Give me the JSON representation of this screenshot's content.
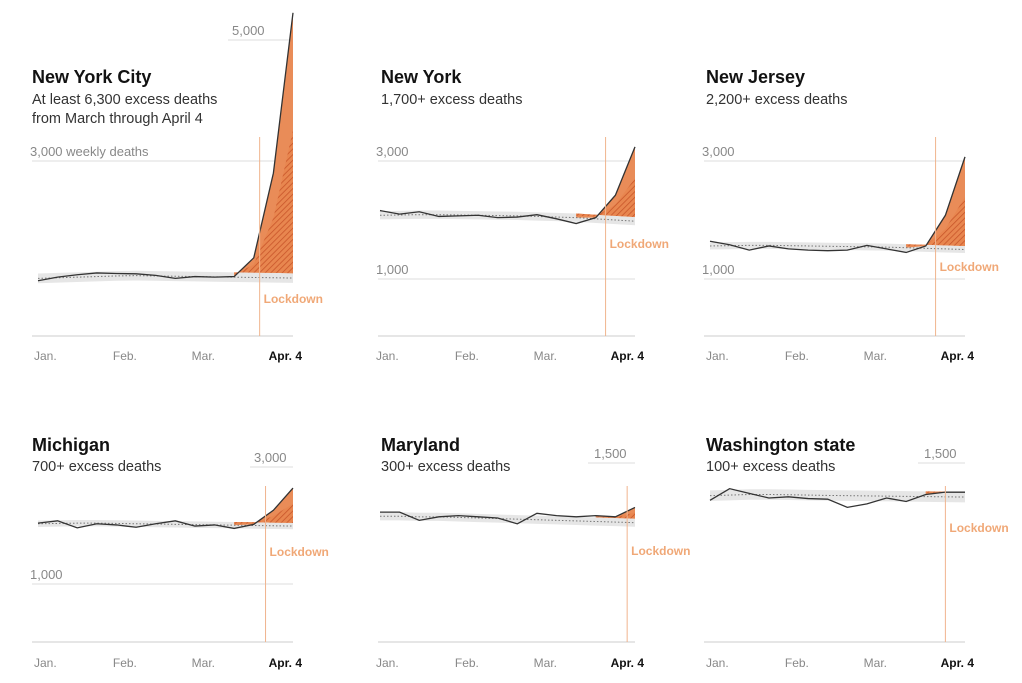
{
  "colors": {
    "excess": "#e8864f",
    "excess_hatch": "#c8552a",
    "band": "#e6e6e6",
    "line": "#333333",
    "grid": "#dddddd",
    "lockdown": "#f0b48e"
  },
  "labels": {
    "lockdown": "Lockdown",
    "months": [
      "Jan.",
      "Feb.",
      "Mar."
    ],
    "end": "Apr. 4"
  },
  "chart_data": [
    {
      "type": "line",
      "title": "New York City",
      "subtitle": "At least 6,300 excess deaths\nfrom March through April 4",
      "y_gridlines": [
        {
          "value": 3000,
          "label": "3,000 weekly deaths"
        },
        {
          "value": 5000,
          "label": "5,000"
        }
      ],
      "ylim": [
        0,
        5400
      ],
      "lockdown_week": 11.3,
      "weeks": 14,
      "observed": [
        1020,
        1080,
        1120,
        1150,
        1140,
        1135,
        1110,
        1060,
        1090,
        1080,
        1090,
        1400,
        2800,
        5450
      ],
      "expected": [
        1060,
        1070,
        1080,
        1090,
        1100,
        1105,
        1100,
        1095,
        1090,
        1085,
        1080,
        1075,
        1070,
        1065
      ],
      "band_halfwidth": 80
    },
    {
      "type": "line",
      "title": "New York",
      "subtitle": "1,700+ excess deaths",
      "y_gridlines": [
        {
          "value": 1000,
          "label": "1,000"
        },
        {
          "value": 3000,
          "label": "3,000"
        }
      ],
      "ylim": [
        0,
        3300
      ],
      "lockdown_week": 11.5,
      "weeks": 14,
      "observed": [
        2160,
        2100,
        2140,
        2060,
        2070,
        2080,
        2040,
        2050,
        2090,
        2020,
        1940,
        2040,
        2420,
        3240
      ],
      "expected": [
        2080,
        2085,
        2090,
        2090,
        2085,
        2080,
        2075,
        2070,
        2060,
        2050,
        2040,
        2020,
        2000,
        1980
      ],
      "band_halfwidth": 70
    },
    {
      "type": "line",
      "title": "New Jersey",
      "subtitle": "2,200+ excess deaths",
      "y_gridlines": [
        {
          "value": 1000,
          "label": "1,000"
        },
        {
          "value": 3000,
          "label": "3,000"
        }
      ],
      "ylim": [
        0,
        3300
      ],
      "lockdown_week": 11.5,
      "weeks": 14,
      "observed": [
        1640,
        1580,
        1490,
        1560,
        1510,
        1490,
        1480,
        1490,
        1570,
        1510,
        1450,
        1560,
        2080,
        3070
      ],
      "expected": [
        1560,
        1565,
        1570,
        1570,
        1565,
        1560,
        1555,
        1550,
        1545,
        1540,
        1530,
        1520,
        1510,
        1500
      ],
      "band_halfwidth": 60
    },
    {
      "type": "line",
      "title": "Michigan",
      "subtitle": "700+ excess deaths",
      "y_gridlines": [
        {
          "value": 1000,
          "label": "1,000"
        },
        {
          "value": 3000,
          "label": "3,000"
        }
      ],
      "ylim": [
        0,
        3300
      ],
      "lockdown_week": 11.6,
      "weeks": 14,
      "observed": [
        2040,
        2080,
        1960,
        2030,
        2010,
        1970,
        2030,
        2080,
        1990,
        2010,
        1950,
        2020,
        2260,
        2640
      ],
      "expected": [
        2030,
        2035,
        2040,
        2040,
        2035,
        2030,
        2025,
        2020,
        2015,
        2010,
        2005,
        2000,
        1995,
        1990
      ],
      "band_halfwidth": 55
    },
    {
      "type": "line",
      "title": "Maryland",
      "subtitle": "300+ excess deaths",
      "y_gridlines": [
        {
          "value": 1500,
          "label": "1,500"
        }
      ],
      "ylim": [
        0,
        1600
      ],
      "lockdown_week": 12.6,
      "weeks": 14,
      "observed": [
        1080,
        1080,
        1010,
        1040,
        1050,
        1040,
        1030,
        980,
        1070,
        1050,
        1040,
        1050,
        1040,
        1120
      ],
      "expected": [
        1045,
        1045,
        1040,
        1040,
        1035,
        1030,
        1025,
        1020,
        1015,
        1010,
        1005,
        1000,
        995,
        990
      ],
      "band_halfwidth": 35
    },
    {
      "type": "line",
      "title": "Washington state",
      "subtitle": "100+ excess deaths",
      "y_gridlines": [
        {
          "value": 1500,
          "label": "1,500"
        }
      ],
      "ylim": [
        0,
        1600
      ],
      "lockdown_week": 12.0,
      "weeks": 14,
      "observed": [
        1180,
        1280,
        1240,
        1200,
        1210,
        1195,
        1190,
        1120,
        1150,
        1200,
        1170,
        1230,
        1250,
        1250
      ],
      "expected": [
        1220,
        1225,
        1230,
        1230,
        1228,
        1225,
        1222,
        1220,
        1218,
        1216,
        1214,
        1212,
        1210,
        1208
      ],
      "band_halfwidth": 45
    }
  ]
}
